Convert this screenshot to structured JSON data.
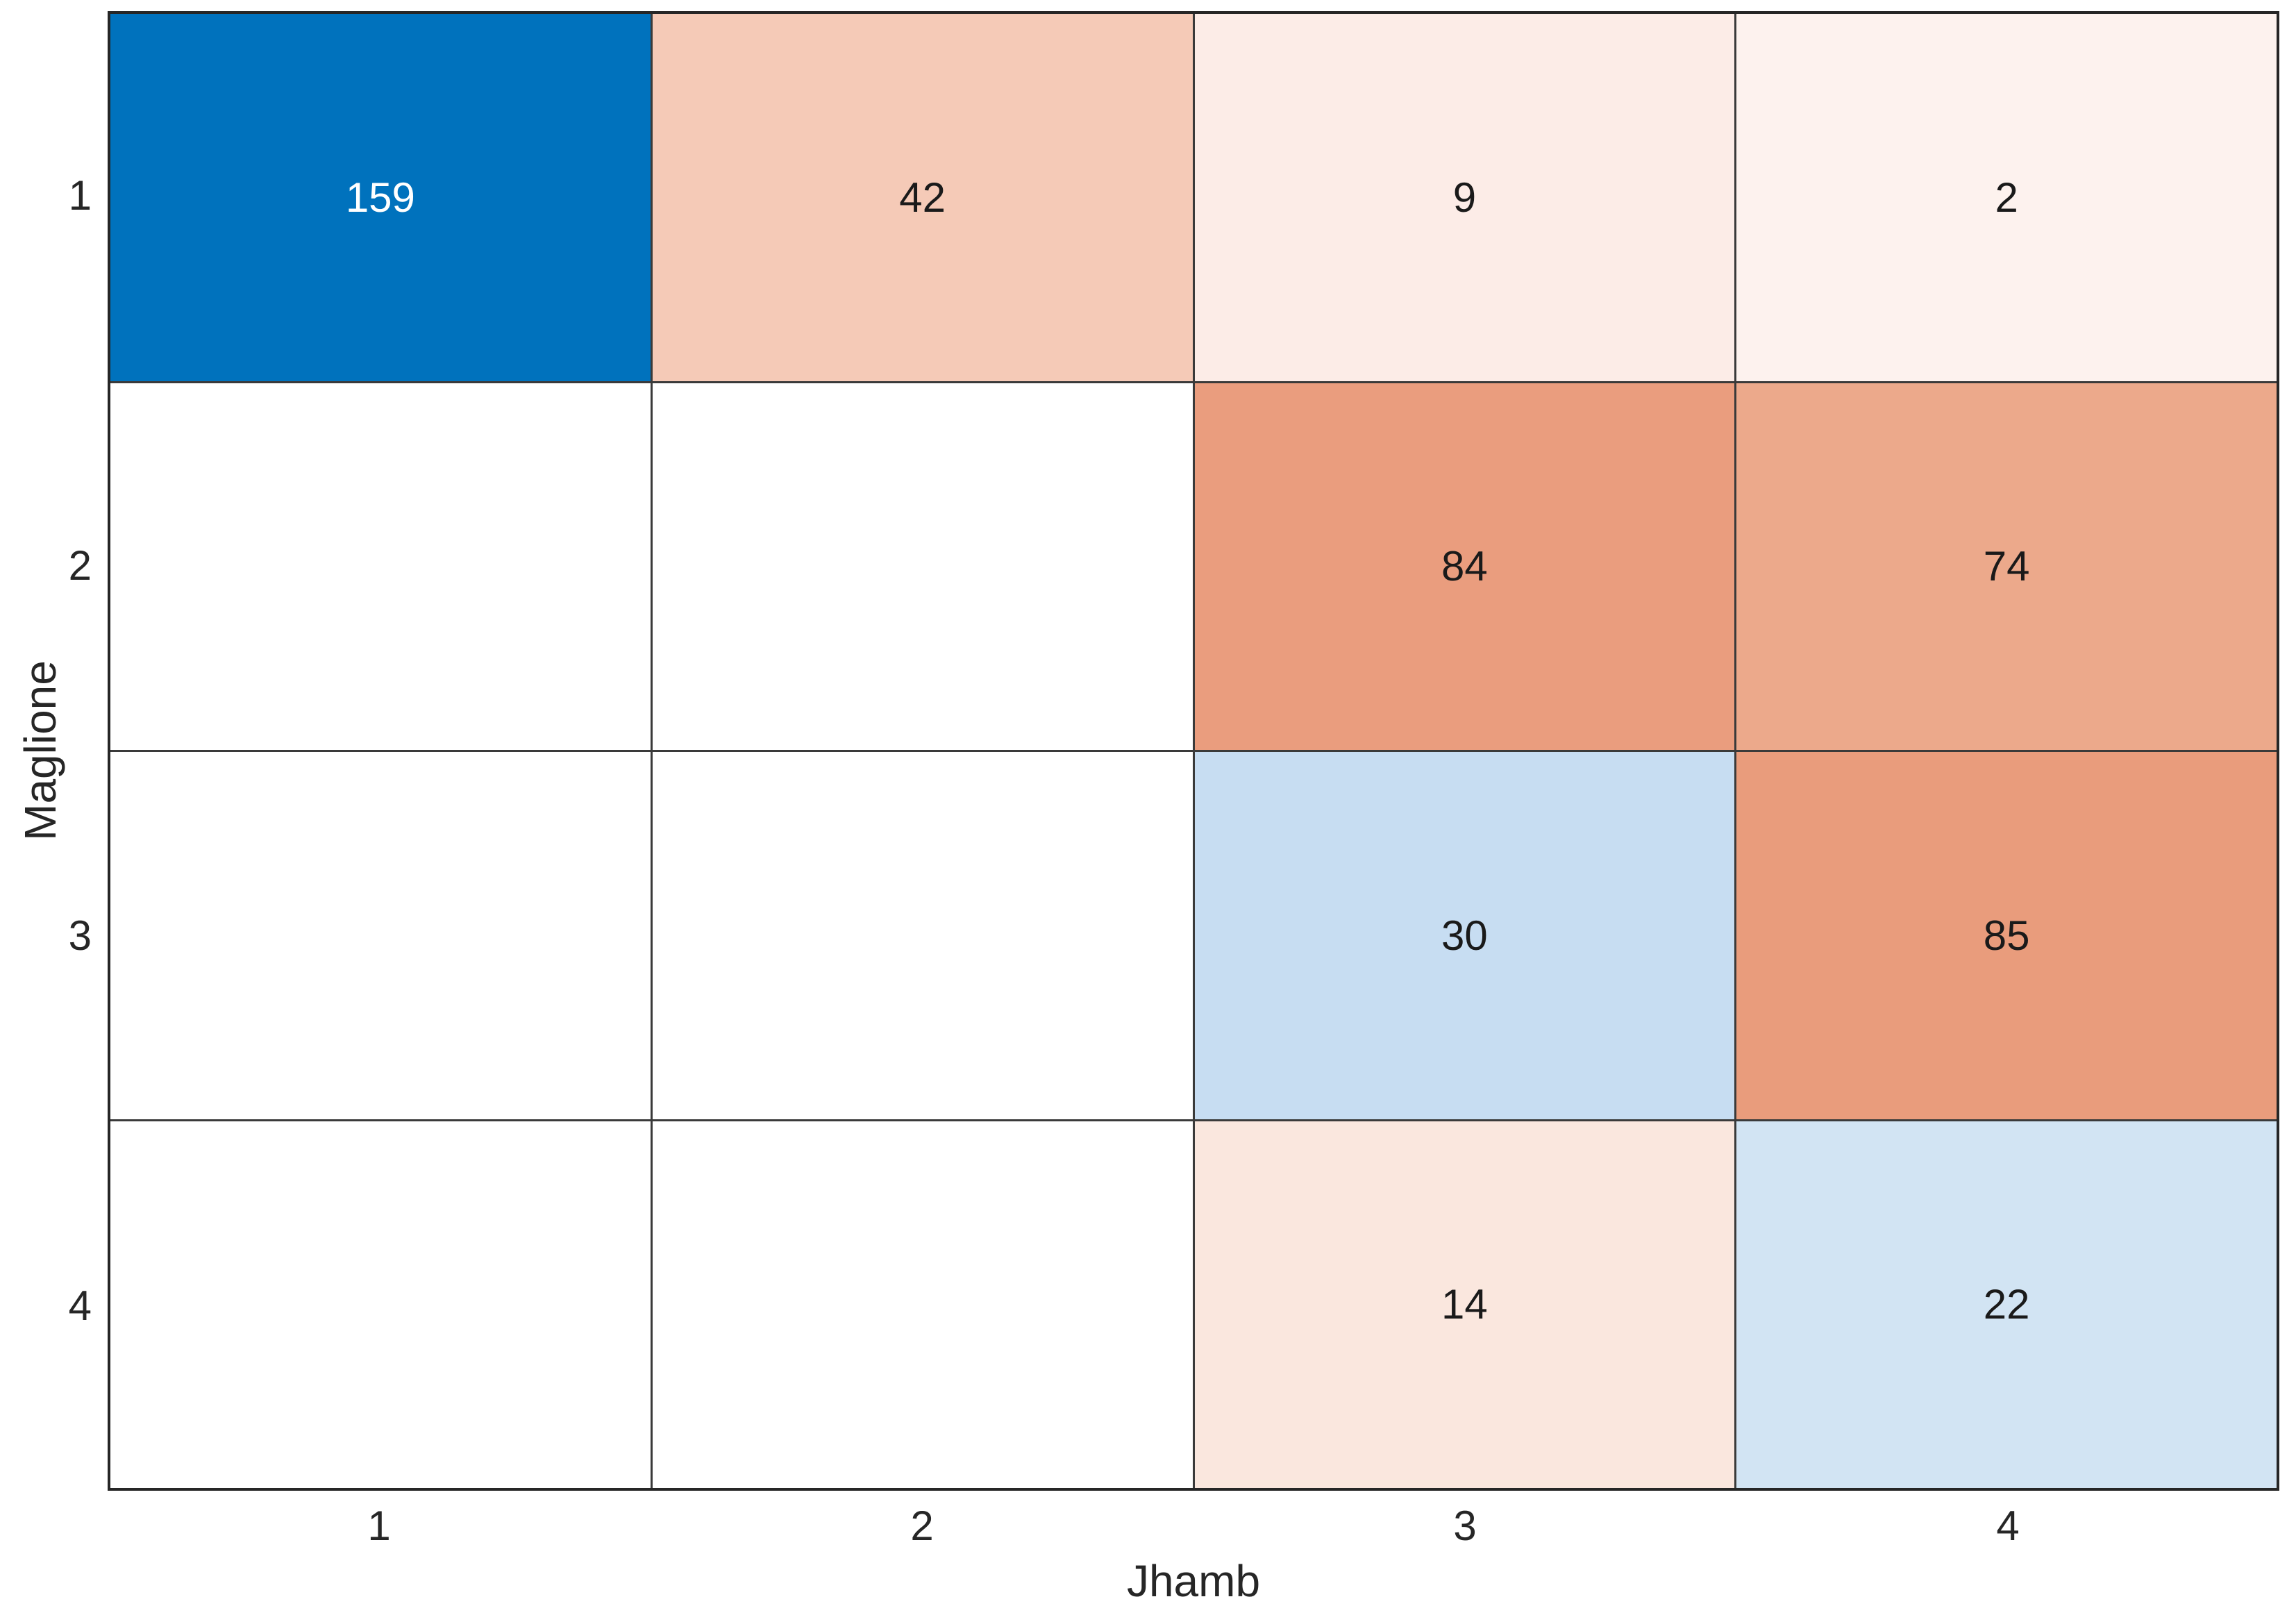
{
  "chart_data": {
    "type": "heatmap",
    "title": "",
    "xlabel": "Jhamb",
    "ylabel": "Maglione",
    "x_categories": [
      "1",
      "2",
      "3",
      "4"
    ],
    "y_categories": [
      "1",
      "2",
      "3",
      "4"
    ],
    "matrix": [
      [
        159,
        42,
        9,
        2
      ],
      [
        null,
        null,
        84,
        74
      ],
      [
        null,
        null,
        30,
        85
      ],
      [
        null,
        null,
        14,
        22
      ]
    ],
    "legend_position": "none",
    "grid": true,
    "colors": {
      "diagonal_base": "#0072BD",
      "offdiagonal_base": "#D95319",
      "empty_cell": "#FFFFFF",
      "grid_line": "#3A3A3A",
      "axis_text": "#262626"
    },
    "cells": [
      {
        "row": 1,
        "col": 1,
        "label": "159",
        "bg": "#0072BD",
        "fg": "#FFFFFF"
      },
      {
        "row": 1,
        "col": 2,
        "label": "42",
        "bg": "#F5CAB7",
        "fg": "#1A1A1A"
      },
      {
        "row": 1,
        "col": 3,
        "label": "9",
        "bg": "#FCECE7",
        "fg": "#1A1A1A"
      },
      {
        "row": 1,
        "col": 4,
        "label": "2",
        "bg": "#FDF2EE",
        "fg": "#1A1A1A"
      },
      {
        "row": 2,
        "col": 1,
        "label": "",
        "bg": "#FFFFFF",
        "fg": "#1A1A1A"
      },
      {
        "row": 2,
        "col": 2,
        "label": "",
        "bg": "#FFFFFF",
        "fg": "#1A1A1A"
      },
      {
        "row": 2,
        "col": 3,
        "label": "84",
        "bg": "#EA9D7E",
        "fg": "#1A1A1A"
      },
      {
        "row": 2,
        "col": 4,
        "label": "74",
        "bg": "#ECA98B",
        "fg": "#1A1A1A"
      },
      {
        "row": 3,
        "col": 1,
        "label": "",
        "bg": "#FFFFFF",
        "fg": "#1A1A1A"
      },
      {
        "row": 3,
        "col": 2,
        "label": "",
        "bg": "#FFFFFF",
        "fg": "#1A1A1A"
      },
      {
        "row": 3,
        "col": 3,
        "label": "30",
        "bg": "#C7DDF2",
        "fg": "#1A1A1A"
      },
      {
        "row": 3,
        "col": 4,
        "label": "85",
        "bg": "#E99C7C",
        "fg": "#1A1A1A"
      },
      {
        "row": 4,
        "col": 1,
        "label": "",
        "bg": "#FFFFFF",
        "fg": "#1A1A1A"
      },
      {
        "row": 4,
        "col": 2,
        "label": "",
        "bg": "#FFFFFF",
        "fg": "#1A1A1A"
      },
      {
        "row": 4,
        "col": 3,
        "label": "14",
        "bg": "#FAE7DE",
        "fg": "#1A1A1A"
      },
      {
        "row": 4,
        "col": 4,
        "label": "22",
        "bg": "#D2E4F3",
        "fg": "#1A1A1A"
      }
    ]
  }
}
